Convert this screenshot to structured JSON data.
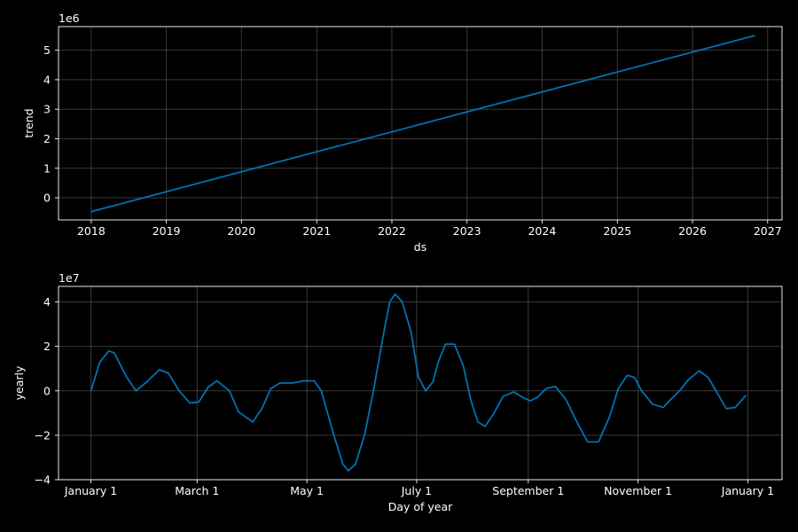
{
  "colors": {
    "background": "#000000",
    "axes_face": "#000000",
    "spine": "#ffffff",
    "grid": "#3a3a3a",
    "line": "#0072B2",
    "text": "#ffffff"
  },
  "chart_data": [
    {
      "type": "line",
      "name": "trend",
      "xlabel": "ds",
      "ylabel": "trend",
      "y_offset_label": "1e6",
      "grid": true,
      "xlim": [
        "2017-07-26",
        "2027-03-12"
      ],
      "ylim": [
        -0.75,
        5.8
      ],
      "x_ticks": [
        "2018-01-01",
        "2019-01-01",
        "2020-01-01",
        "2021-01-01",
        "2022-01-01",
        "2023-01-01",
        "2024-01-01",
        "2025-01-01",
        "2026-01-01",
        "2027-01-01"
      ],
      "x_tick_labels": [
        "2018",
        "2019",
        "2020",
        "2021",
        "2022",
        "2023",
        "2024",
        "2025",
        "2026",
        "2027"
      ],
      "y_ticks": [
        0,
        1,
        2,
        3,
        4,
        5
      ],
      "y_tick_labels": [
        "0",
        "1",
        "2",
        "3",
        "4",
        "5"
      ],
      "x": [
        "2018-01-01",
        "2026-11-01"
      ],
      "y": [
        -0.47,
        5.5
      ]
    },
    {
      "type": "line",
      "name": "yearly",
      "xlabel": "Day of year",
      "ylabel": "yearly",
      "y_offset_label": "1e7",
      "grid": true,
      "xlim": [
        -18,
        384
      ],
      "ylim": [
        -4.0,
        4.7
      ],
      "x_ticks": [
        0,
        59,
        120,
        181,
        243,
        304,
        365
      ],
      "x_tick_labels": [
        "January 1",
        "March 1",
        "May 1",
        "July 1",
        "September 1",
        "November 1",
        "January 1"
      ],
      "y_ticks": [
        -4,
        -2,
        0,
        2,
        4
      ],
      "y_tick_labels": [
        "−4",
        "−2",
        "0",
        "2",
        "4"
      ],
      "x": [
        0,
        5,
        10,
        13,
        20,
        25,
        31,
        38,
        43,
        49,
        55,
        60,
        65,
        70,
        77,
        82,
        90,
        95,
        100,
        105,
        112,
        118,
        124,
        128,
        135,
        140,
        143,
        147,
        152,
        157,
        162,
        166,
        169,
        173,
        178,
        182,
        186,
        190,
        193,
        197,
        202,
        207,
        211,
        215,
        219,
        224,
        229,
        235,
        240,
        244,
        248,
        253,
        258,
        264,
        270,
        276,
        282,
        288,
        293,
        298,
        302,
        306,
        312,
        318,
        322,
        327,
        332,
        338,
        343,
        348,
        353,
        358,
        364
      ],
      "y": [
        0.0,
        1.3,
        1.8,
        1.7,
        0.6,
        0.0,
        0.4,
        0.95,
        0.8,
        0.0,
        -0.55,
        -0.5,
        0.15,
        0.45,
        0.0,
        -0.95,
        -1.4,
        -0.8,
        0.1,
        0.35,
        0.35,
        0.45,
        0.45,
        0.0,
        -2.0,
        -3.3,
        -3.6,
        -3.3,
        -2.0,
        0.0,
        2.3,
        4.0,
        4.35,
        4.0,
        2.6,
        0.6,
        0.0,
        0.4,
        1.3,
        2.1,
        2.1,
        1.1,
        -0.4,
        -1.4,
        -1.6,
        -1.0,
        -0.25,
        -0.05,
        -0.3,
        -0.45,
        -0.3,
        0.1,
        0.2,
        -0.4,
        -1.4,
        -2.3,
        -2.3,
        -1.2,
        0.1,
        0.7,
        0.6,
        0.0,
        -0.6,
        -0.75,
        -0.4,
        0.0,
        0.5,
        0.9,
        0.6,
        -0.1,
        -0.8,
        -0.75,
        -0.2
      ]
    }
  ]
}
